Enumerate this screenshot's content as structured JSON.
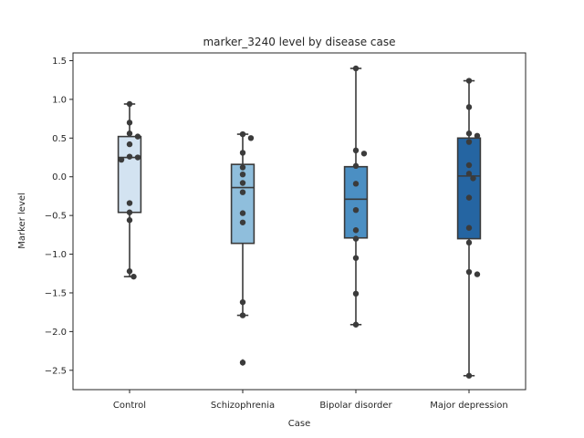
{
  "chart_data": {
    "type": "box",
    "title": "marker_3240 level by disease case",
    "xlabel": "Case",
    "ylabel": "Marker level",
    "ylim": [
      -2.75,
      1.6
    ],
    "yticks": [
      1.5,
      1.0,
      0.5,
      0.0,
      -0.5,
      -1.0,
      -1.5,
      -2.0,
      -2.5
    ],
    "ytick_labels": [
      "1.5",
      "1.0",
      "0.5",
      "0.0",
      "−0.5",
      "−1.0",
      "−1.5",
      "−2.0",
      "−2.5"
    ],
    "grid": false,
    "categories": [
      "Control",
      "Schizophrenia",
      "Bipolar disorder",
      "Major depression"
    ],
    "boxes": [
      {
        "category": "Control",
        "q1": -0.46,
        "median": 0.25,
        "q3": 0.52,
        "whisker_low": -1.29,
        "whisker_high": 0.94,
        "outliers": [],
        "color": "#d3e3f1",
        "points": [
          0.94,
          0.7,
          0.56,
          0.52,
          0.42,
          0.26,
          0.25,
          0.22,
          -0.34,
          -0.46,
          -0.56,
          -1.22,
          -1.29
        ]
      },
      {
        "category": "Schizophrenia",
        "q1": -0.86,
        "median": -0.14,
        "q3": 0.16,
        "whisker_low": -1.79,
        "whisker_high": 0.55,
        "outliers": [
          -2.4
        ],
        "color": "#8fbedc",
        "points": [
          0.55,
          0.5,
          0.31,
          0.12,
          0.03,
          -0.08,
          -0.2,
          -0.47,
          -0.59,
          -1.62,
          -1.79,
          -2.4
        ]
      },
      {
        "category": "Bipolar disorder",
        "q1": -0.79,
        "median": -0.29,
        "q3": 0.13,
        "whisker_low": -1.91,
        "whisker_high": 1.4,
        "outliers": [],
        "color": "#4b8fc3",
        "points": [
          1.4,
          0.34,
          0.3,
          0.14,
          -0.09,
          -0.43,
          -0.69,
          -0.8,
          -1.05,
          -1.51,
          -1.91
        ]
      },
      {
        "category": "Major depression",
        "q1": -0.8,
        "median": 0.01,
        "q3": 0.5,
        "whisker_low": -2.57,
        "whisker_high": 1.24,
        "outliers": [],
        "color": "#2565a2",
        "points": [
          1.24,
          0.9,
          0.56,
          0.53,
          0.45,
          0.15,
          0.04,
          -0.02,
          -0.27,
          -0.66,
          -0.85,
          -1.23,
          -1.26,
          -2.57
        ]
      }
    ]
  }
}
